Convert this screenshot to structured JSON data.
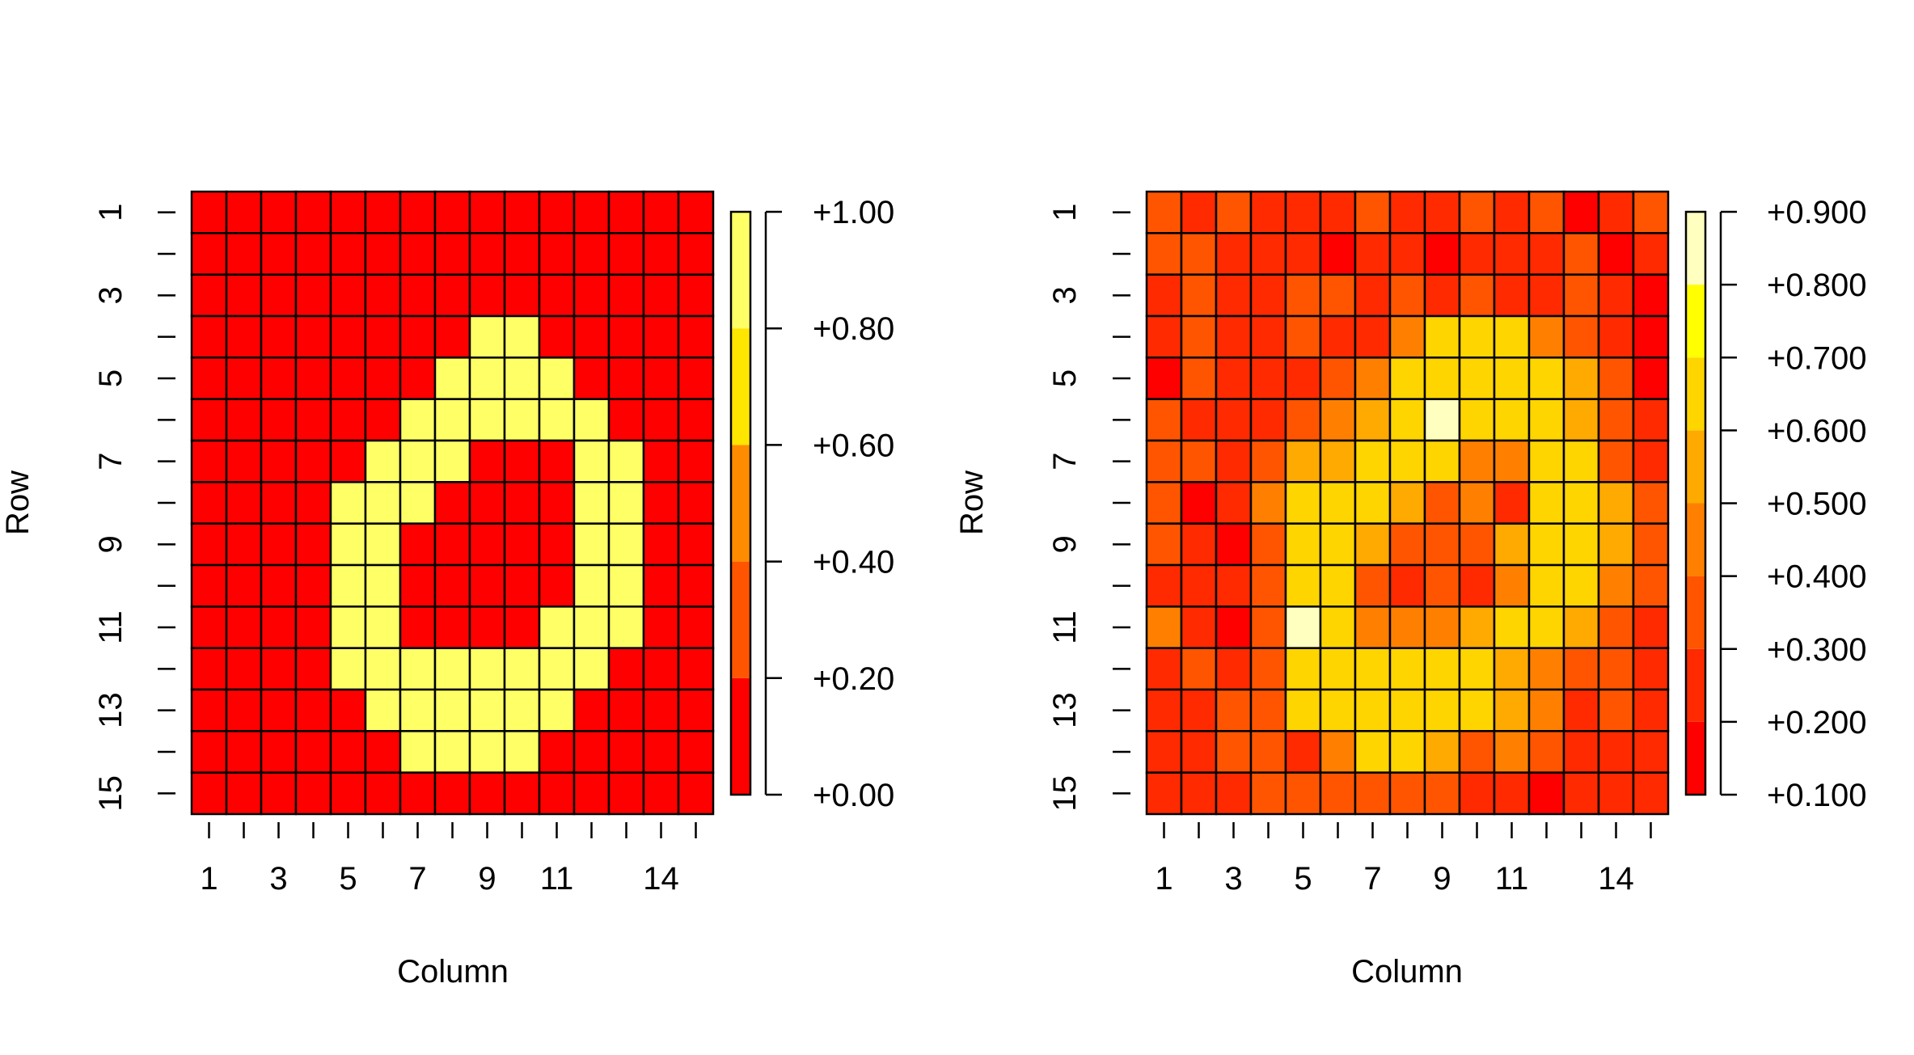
{
  "chart_data": [
    {
      "type": "heatmap",
      "title": "",
      "xlabel": "Column",
      "ylabel": "Row",
      "x_tick_labels": [
        "1",
        "3",
        "5",
        "7",
        "9",
        "11",
        "14"
      ],
      "x_tick_label_columns": [
        1,
        3,
        5,
        7,
        9,
        11,
        14
      ],
      "y_tick_labels": [
        "1",
        "3",
        "5",
        "7",
        "9",
        "11",
        "13",
        "15"
      ],
      "y_tick_label_rows": [
        1,
        3,
        5,
        7,
        9,
        11,
        13,
        15
      ],
      "n_rows": 15,
      "n_cols": 15,
      "color_breaks": [
        0.0,
        0.2,
        0.4,
        0.6,
        0.8,
        1.0
      ],
      "colors": [
        "#FF0000",
        "#FF5500",
        "#FF8C00",
        "#FFE600",
        "#FFFF66"
      ],
      "legend_labels": [
        "+0.00",
        "+0.20",
        "+0.40",
        "+0.60",
        "+0.80",
        "+1.00"
      ],
      "legend_placement": "right",
      "values": [
        [
          0,
          0,
          0,
          0,
          0,
          0,
          0,
          0,
          0,
          0,
          0,
          0,
          0,
          0,
          0
        ],
        [
          0,
          0,
          0,
          0,
          0,
          0,
          0,
          0,
          0,
          0,
          0,
          0,
          0,
          0,
          0
        ],
        [
          0,
          0,
          0,
          0,
          0,
          0,
          0,
          0,
          0,
          0,
          0,
          0,
          0,
          0,
          0
        ],
        [
          0,
          0,
          0,
          0,
          0,
          0,
          0,
          0,
          1,
          1,
          0,
          0,
          0,
          0,
          0
        ],
        [
          0,
          0,
          0,
          0,
          0,
          0,
          0,
          1,
          1,
          1,
          1,
          0,
          0,
          0,
          0
        ],
        [
          0,
          0,
          0,
          0,
          0,
          0,
          1,
          1,
          1,
          1,
          1,
          1,
          0,
          0,
          0
        ],
        [
          0,
          0,
          0,
          0,
          0,
          1,
          1,
          1,
          0,
          0,
          0,
          1,
          1,
          0,
          0
        ],
        [
          0,
          0,
          0,
          0,
          1,
          1,
          1,
          0,
          0,
          0,
          0,
          1,
          1,
          0,
          0
        ],
        [
          0,
          0,
          0,
          0,
          1,
          1,
          0,
          0,
          0,
          0,
          0,
          1,
          1,
          0,
          0
        ],
        [
          0,
          0,
          0,
          0,
          1,
          1,
          0,
          0,
          0,
          0,
          0,
          1,
          1,
          0,
          0
        ],
        [
          0,
          0,
          0,
          0,
          1,
          1,
          0,
          0,
          0,
          0,
          1,
          1,
          1,
          0,
          0
        ],
        [
          0,
          0,
          0,
          0,
          1,
          1,
          1,
          1,
          1,
          1,
          1,
          1,
          0,
          0,
          0
        ],
        [
          0,
          0,
          0,
          0,
          0,
          1,
          1,
          1,
          1,
          1,
          1,
          0,
          0,
          0,
          0
        ],
        [
          0,
          0,
          0,
          0,
          0,
          0,
          1,
          1,
          1,
          1,
          0,
          0,
          0,
          0,
          0
        ],
        [
          0,
          0,
          0,
          0,
          0,
          0,
          0,
          0,
          0,
          0,
          0,
          0,
          0,
          0,
          0
        ]
      ]
    },
    {
      "type": "heatmap",
      "title": "",
      "xlabel": "Column",
      "ylabel": "Row",
      "x_tick_labels": [
        "1",
        "3",
        "5",
        "7",
        "9",
        "11",
        "14"
      ],
      "x_tick_label_columns": [
        1,
        3,
        5,
        7,
        9,
        11,
        14
      ],
      "y_tick_labels": [
        "1",
        "3",
        "5",
        "7",
        "9",
        "11",
        "13",
        "15"
      ],
      "y_tick_label_rows": [
        1,
        3,
        5,
        7,
        9,
        11,
        13,
        15
      ],
      "n_rows": 15,
      "n_cols": 15,
      "color_breaks": [
        0.1,
        0.2,
        0.3,
        0.4,
        0.5,
        0.6,
        0.7,
        0.8,
        0.9
      ],
      "colors": [
        "#FF0000",
        "#FF2A00",
        "#FF5500",
        "#FF8000",
        "#FFAA00",
        "#FFD500",
        "#FFFF00",
        "#FFFFBF"
      ],
      "legend_labels": [
        "+0.100",
        "+0.200",
        "+0.300",
        "+0.400",
        "+0.500",
        "+0.600",
        "+0.700",
        "+0.800",
        "+0.900"
      ],
      "legend_placement": "right",
      "values": [
        [
          0.35,
          0.25,
          0.35,
          0.25,
          0.25,
          0.25,
          0.35,
          0.25,
          0.25,
          0.35,
          0.25,
          0.35,
          0.15,
          0.25,
          0.35
        ],
        [
          0.35,
          0.35,
          0.25,
          0.25,
          0.25,
          0.15,
          0.25,
          0.25,
          0.15,
          0.25,
          0.25,
          0.25,
          0.35,
          0.15,
          0.25
        ],
        [
          0.25,
          0.35,
          0.25,
          0.25,
          0.35,
          0.35,
          0.25,
          0.35,
          0.25,
          0.35,
          0.25,
          0.25,
          0.35,
          0.25,
          0.15
        ],
        [
          0.25,
          0.35,
          0.25,
          0.25,
          0.35,
          0.25,
          0.25,
          0.45,
          0.65,
          0.65,
          0.65,
          0.45,
          0.35,
          0.25,
          0.15
        ],
        [
          0.15,
          0.35,
          0.25,
          0.25,
          0.25,
          0.35,
          0.45,
          0.65,
          0.65,
          0.65,
          0.65,
          0.65,
          0.55,
          0.35,
          0.15
        ],
        [
          0.35,
          0.25,
          0.25,
          0.25,
          0.35,
          0.45,
          0.55,
          0.65,
          0.85,
          0.65,
          0.65,
          0.65,
          0.55,
          0.35,
          0.25
        ],
        [
          0.35,
          0.35,
          0.25,
          0.35,
          0.55,
          0.55,
          0.65,
          0.65,
          0.65,
          0.45,
          0.45,
          0.65,
          0.65,
          0.35,
          0.25
        ],
        [
          0.35,
          0.15,
          0.25,
          0.45,
          0.65,
          0.65,
          0.65,
          0.55,
          0.35,
          0.45,
          0.25,
          0.65,
          0.65,
          0.55,
          0.35
        ],
        [
          0.35,
          0.25,
          0.15,
          0.35,
          0.65,
          0.65,
          0.55,
          0.35,
          0.35,
          0.35,
          0.55,
          0.65,
          0.65,
          0.55,
          0.35
        ],
        [
          0.25,
          0.25,
          0.25,
          0.35,
          0.65,
          0.65,
          0.35,
          0.25,
          0.35,
          0.25,
          0.45,
          0.65,
          0.65,
          0.45,
          0.35
        ],
        [
          0.45,
          0.25,
          0.15,
          0.35,
          0.85,
          0.65,
          0.45,
          0.45,
          0.45,
          0.55,
          0.65,
          0.65,
          0.55,
          0.35,
          0.25
        ],
        [
          0.25,
          0.35,
          0.25,
          0.35,
          0.65,
          0.65,
          0.65,
          0.65,
          0.65,
          0.65,
          0.55,
          0.45,
          0.35,
          0.35,
          0.25
        ],
        [
          0.25,
          0.25,
          0.35,
          0.35,
          0.65,
          0.65,
          0.65,
          0.65,
          0.65,
          0.65,
          0.55,
          0.45,
          0.25,
          0.35,
          0.25
        ],
        [
          0.25,
          0.25,
          0.35,
          0.35,
          0.25,
          0.45,
          0.65,
          0.65,
          0.55,
          0.35,
          0.45,
          0.35,
          0.25,
          0.25,
          0.25
        ],
        [
          0.25,
          0.25,
          0.25,
          0.35,
          0.35,
          0.35,
          0.35,
          0.35,
          0.35,
          0.25,
          0.25,
          0.15,
          0.25,
          0.25,
          0.25
        ]
      ]
    }
  ]
}
